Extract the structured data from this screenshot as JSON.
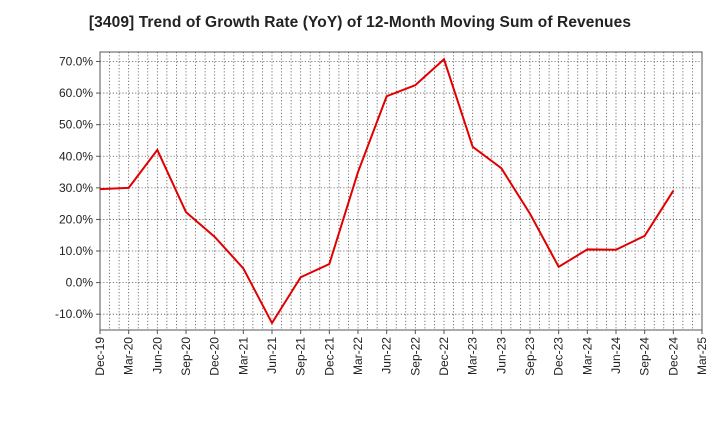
{
  "chart_data": {
    "type": "line",
    "title": "[3409]  Trend of Growth Rate (YoY) of 12-Month Moving Sum of Revenues",
    "xlabel": "",
    "ylabel": "",
    "categories": [
      "Dec-19",
      "Mar-20",
      "Jun-20",
      "Sep-20",
      "Dec-20",
      "Mar-21",
      "Jun-21",
      "Sep-21",
      "Dec-21",
      "Mar-22",
      "Jun-22",
      "Sep-22",
      "Dec-22",
      "Mar-23",
      "Jun-23",
      "Sep-23",
      "Dec-23",
      "Mar-24",
      "Jun-24",
      "Sep-24",
      "Dec-24",
      "Mar-25"
    ],
    "series": [
      {
        "values": [
          29.6,
          30.0,
          42.0,
          22.3,
          14.5,
          4.5,
          -12.8,
          1.7,
          5.9,
          35.0,
          59.0,
          62.5,
          70.7,
          43.0,
          36.2,
          21.8,
          5.0,
          10.5,
          10.4,
          14.8,
          29.1,
          null
        ]
      }
    ],
    "yticks": [
      "70.0%",
      "60.0%",
      "50.0%",
      "40.0%",
      "30.0%",
      "20.0%",
      "10.0%",
      "0.0%",
      "-10.0%"
    ],
    "ylim": [
      -15,
      73
    ],
    "ytick_values": [
      70,
      60,
      50,
      40,
      30,
      20,
      10,
      0,
      -10
    ],
    "grid": true,
    "colors": {
      "line": "#e00000",
      "grid": "#555555",
      "axis": "#555555"
    }
  }
}
